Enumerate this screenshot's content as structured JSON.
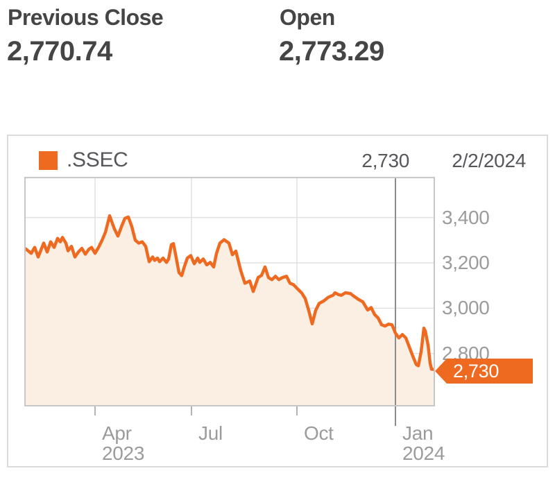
{
  "stats": [
    {
      "label": "Previous Close",
      "value": "2,770.74"
    },
    {
      "label": "Open",
      "value": "2,773.29"
    }
  ],
  "chart": {
    "legend": {
      "symbol": ".SSEC",
      "value": "2,730",
      "date": "2/2/2024"
    },
    "badge": {
      "label": "2,730"
    }
  },
  "colors": {
    "accent_orange": "#EE6A20",
    "area_fill": "#FBEFE3",
    "grid": "#E0E0E0",
    "plot_border": "#C7C7C7",
    "card_border": "#DBDBDB",
    "axis_text": "#9B9B9B",
    "legend_text": "#56575B",
    "header_text": "#454545",
    "year_line": "#8B8B8B",
    "tick": "#B3B3B3",
    "badge_text": "#FFFFFF"
  },
  "chart_data": {
    "type": "area",
    "series_name": ".SSEC",
    "title": "",
    "xlabel": "",
    "ylabel": "",
    "x_range": [
      "Feb 2023",
      "2/2/2024"
    ],
    "ylim": [
      2573,
      3573
    ],
    "grid": true,
    "legend_position": "top-left",
    "y_ticks": [
      {
        "label": "3,400",
        "value": 3400
      },
      {
        "label": "3,200",
        "value": 3200
      },
      {
        "label": "3,000",
        "value": 3000
      },
      {
        "label": "2,800",
        "value": 2800
      }
    ],
    "x_ticks": [
      {
        "label": "Apr",
        "year": "2023",
        "t": 0.17,
        "emphasis": false
      },
      {
        "label": "Jul",
        "t": 0.4065,
        "emphasis": false
      },
      {
        "label": "Oct",
        "t": 0.665,
        "emphasis": false
      },
      {
        "label": "Jan",
        "year": "2024",
        "t": 0.9065,
        "emphasis": true
      }
    ],
    "last_point": {
      "value": 2730,
      "date": "2/2/2024"
    },
    "points": [
      [
        0.0,
        3262
      ],
      [
        0.0136,
        3242
      ],
      [
        0.0221,
        3268
      ],
      [
        0.0306,
        3226
      ],
      [
        0.0442,
        3287
      ],
      [
        0.0527,
        3248
      ],
      [
        0.0612,
        3293
      ],
      [
        0.0697,
        3268
      ],
      [
        0.0782,
        3308
      ],
      [
        0.085,
        3293
      ],
      [
        0.0901,
        3312
      ],
      [
        0.0986,
        3287
      ],
      [
        0.1037,
        3253
      ],
      [
        0.1122,
        3273
      ],
      [
        0.1207,
        3226
      ],
      [
        0.1293,
        3248
      ],
      [
        0.1378,
        3264
      ],
      [
        0.1463,
        3238
      ],
      [
        0.1548,
        3260
      ],
      [
        0.1616,
        3268
      ],
      [
        0.1701,
        3242
      ],
      [
        0.1786,
        3268
      ],
      [
        0.1871,
        3299
      ],
      [
        0.1956,
        3335
      ],
      [
        0.2058,
        3408
      ],
      [
        0.2126,
        3374
      ],
      [
        0.2177,
        3349
      ],
      [
        0.2262,
        3318
      ],
      [
        0.2347,
        3359
      ],
      [
        0.2432,
        3396
      ],
      [
        0.2517,
        3402
      ],
      [
        0.2602,
        3360
      ],
      [
        0.2687,
        3300
      ],
      [
        0.2772,
        3287
      ],
      [
        0.2857,
        3293
      ],
      [
        0.2942,
        3273
      ],
      [
        0.3027,
        3205
      ],
      [
        0.3112,
        3226
      ],
      [
        0.3163,
        3211
      ],
      [
        0.3231,
        3221
      ],
      [
        0.3282,
        3205
      ],
      [
        0.3367,
        3221
      ],
      [
        0.3452,
        3202
      ],
      [
        0.3503,
        3217
      ],
      [
        0.3571,
        3280
      ],
      [
        0.3622,
        3285
      ],
      [
        0.3673,
        3238
      ],
      [
        0.3758,
        3157
      ],
      [
        0.3827,
        3144
      ],
      [
        0.3878,
        3176
      ],
      [
        0.3963,
        3221
      ],
      [
        0.4048,
        3232
      ],
      [
        0.4133,
        3196
      ],
      [
        0.4218,
        3221
      ],
      [
        0.4269,
        3202
      ],
      [
        0.4354,
        3217
      ],
      [
        0.4439,
        3191
      ],
      [
        0.4524,
        3202
      ],
      [
        0.4609,
        3182
      ],
      [
        0.4677,
        3241
      ],
      [
        0.4762,
        3287
      ],
      [
        0.4864,
        3302
      ],
      [
        0.4983,
        3287
      ],
      [
        0.5068,
        3236
      ],
      [
        0.5153,
        3252
      ],
      [
        0.5272,
        3166
      ],
      [
        0.5374,
        3110
      ],
      [
        0.5493,
        3120
      ],
      [
        0.5578,
        3074
      ],
      [
        0.5697,
        3135
      ],
      [
        0.5782,
        3145
      ],
      [
        0.5867,
        3182
      ],
      [
        0.5952,
        3135
      ],
      [
        0.6037,
        3126
      ],
      [
        0.6122,
        3141
      ],
      [
        0.6207,
        3126
      ],
      [
        0.6293,
        3135
      ],
      [
        0.6395,
        3141
      ],
      [
        0.648,
        3110
      ],
      [
        0.6565,
        3104
      ],
      [
        0.665,
        3088
      ],
      [
        0.6769,
        3067
      ],
      [
        0.6854,
        3042
      ],
      [
        0.6939,
        2990
      ],
      [
        0.7024,
        2931
      ],
      [
        0.7109,
        2990
      ],
      [
        0.7194,
        3021
      ],
      [
        0.7313,
        3033
      ],
      [
        0.7415,
        3048
      ],
      [
        0.7534,
        3057
      ],
      [
        0.7585,
        3068
      ],
      [
        0.767,
        3060
      ],
      [
        0.7738,
        3057
      ],
      [
        0.784,
        3068
      ],
      [
        0.7959,
        3065
      ],
      [
        0.8044,
        3053
      ],
      [
        0.8163,
        3038
      ],
      [
        0.8265,
        3028
      ],
      [
        0.8384,
        2992
      ],
      [
        0.8469,
        3003
      ],
      [
        0.8554,
        2972
      ],
      [
        0.8639,
        2957
      ],
      [
        0.8724,
        2927
      ],
      [
        0.8809,
        2921
      ],
      [
        0.8894,
        2930
      ],
      [
        0.898,
        2927
      ],
      [
        0.9065,
        2890
      ],
      [
        0.915,
        2869
      ],
      [
        0.9235,
        2884
      ],
      [
        0.932,
        2869
      ],
      [
        0.9405,
        2829
      ],
      [
        0.949,
        2789
      ],
      [
        0.9575,
        2752
      ],
      [
        0.9626,
        2746
      ],
      [
        0.9694,
        2808
      ],
      [
        0.9762,
        2912
      ],
      [
        0.9796,
        2900
      ],
      [
        0.9864,
        2838
      ],
      [
        0.9915,
        2758
      ],
      [
        0.9949,
        2731
      ],
      [
        1.0,
        2730
      ]
    ]
  }
}
